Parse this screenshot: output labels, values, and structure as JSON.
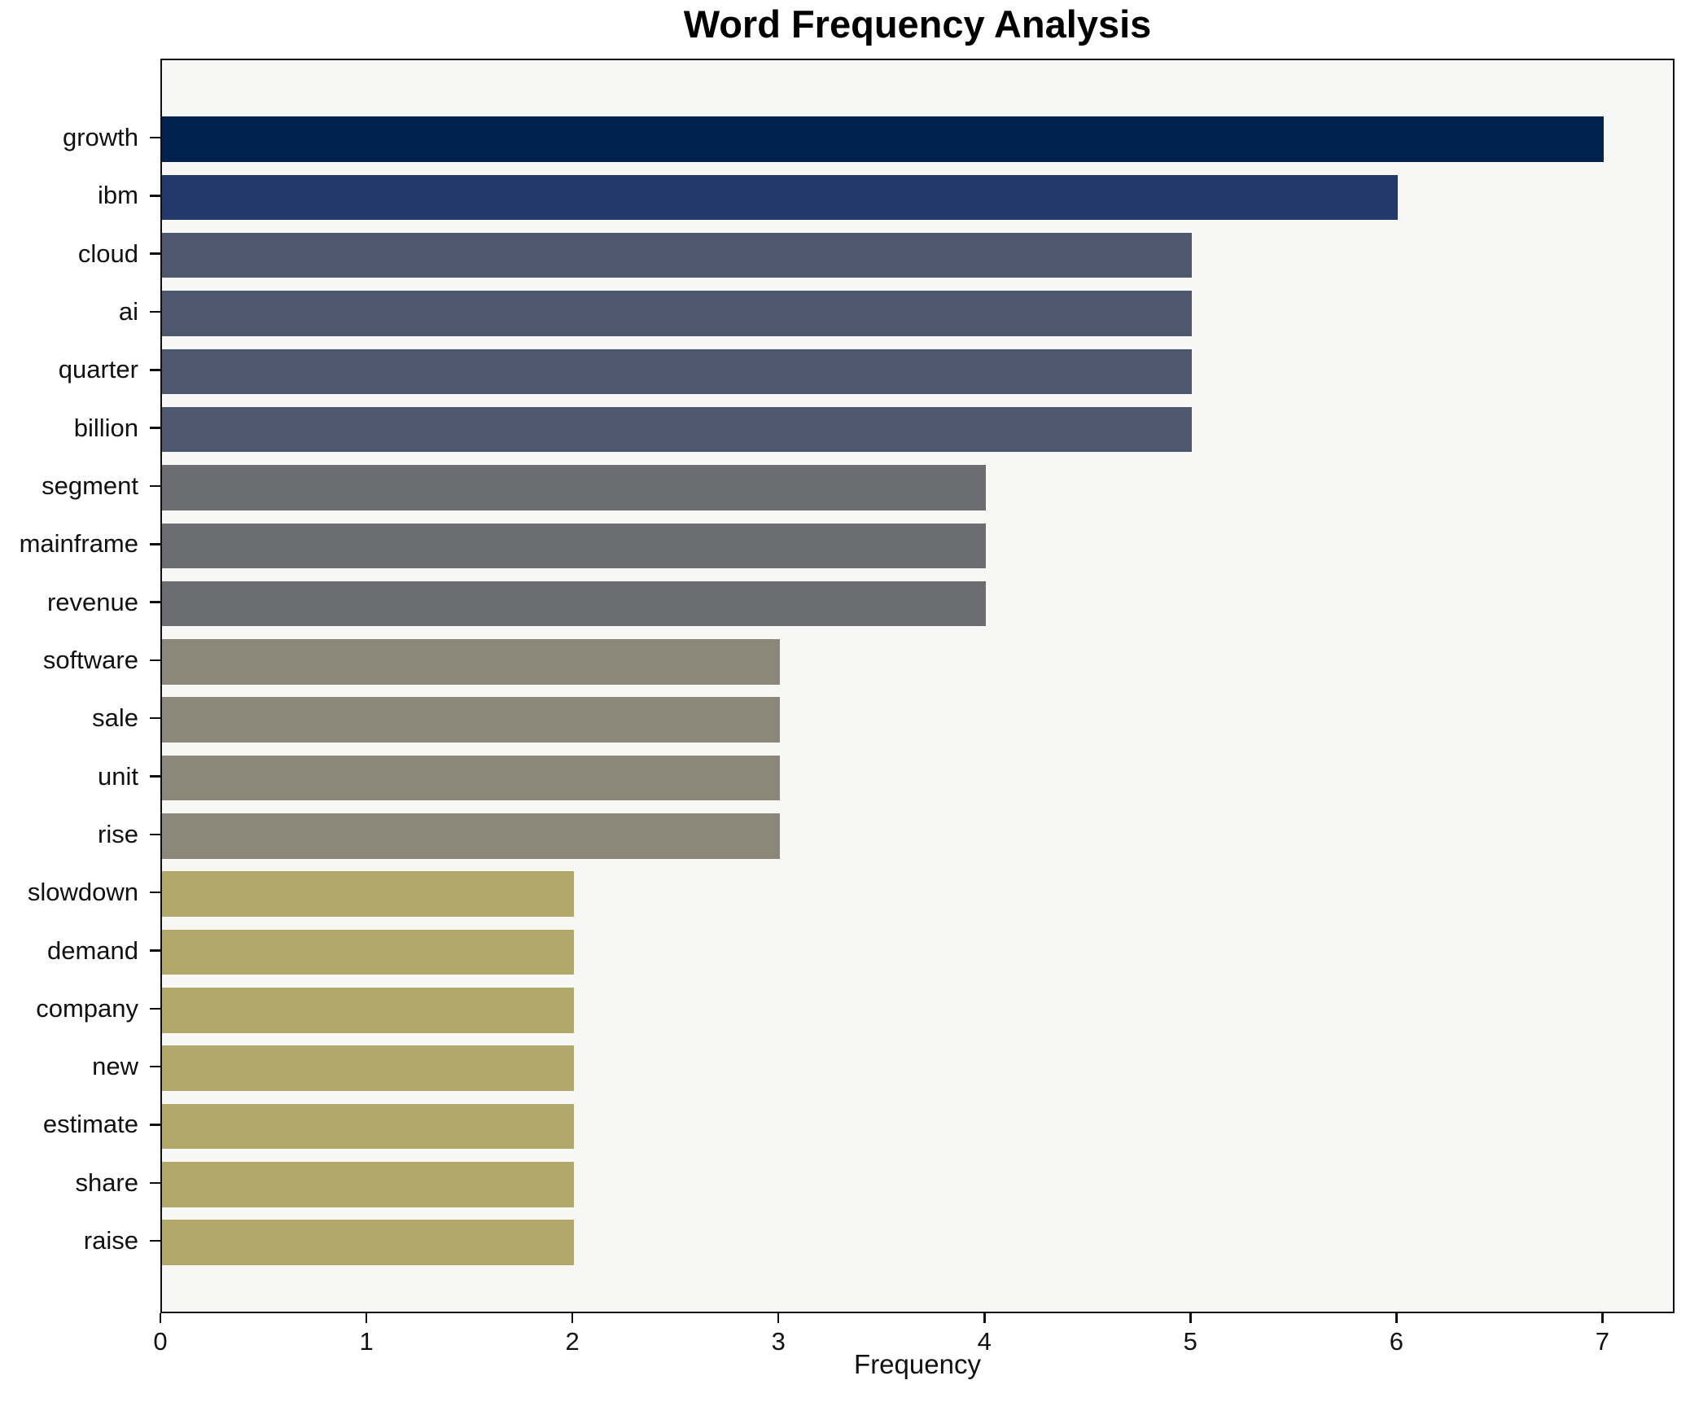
{
  "figure": {
    "background": "#ffffff",
    "plot_background": "#f7f7f5",
    "spine_color": "#0f0f0f"
  },
  "chart_data": {
    "type": "bar",
    "orientation": "horizontal",
    "title": "Word Frequency Analysis",
    "xlabel": "Frequency",
    "ylabel": "",
    "categories": [
      "growth",
      "ibm",
      "cloud",
      "ai",
      "quarter",
      "billion",
      "segment",
      "mainframe",
      "revenue",
      "software",
      "sale",
      "unit",
      "rise",
      "slowdown",
      "demand",
      "company",
      "new",
      "estimate",
      "share",
      "raise"
    ],
    "values": [
      7,
      6,
      5,
      5,
      5,
      5,
      4,
      4,
      4,
      3,
      3,
      3,
      3,
      2,
      2,
      2,
      2,
      2,
      2,
      2
    ],
    "xlim": [
      0,
      7.35
    ],
    "xticks": [
      0,
      1,
      2,
      3,
      4,
      5,
      6,
      7
    ],
    "grid": false,
    "legend_position": "none",
    "colors_by_value": {
      "7": "#00224e",
      "6": "#24396b",
      "5": "#4d576e",
      "4": "#6c6d71",
      "3": "#8c8778",
      "2": "#b2a869"
    }
  }
}
